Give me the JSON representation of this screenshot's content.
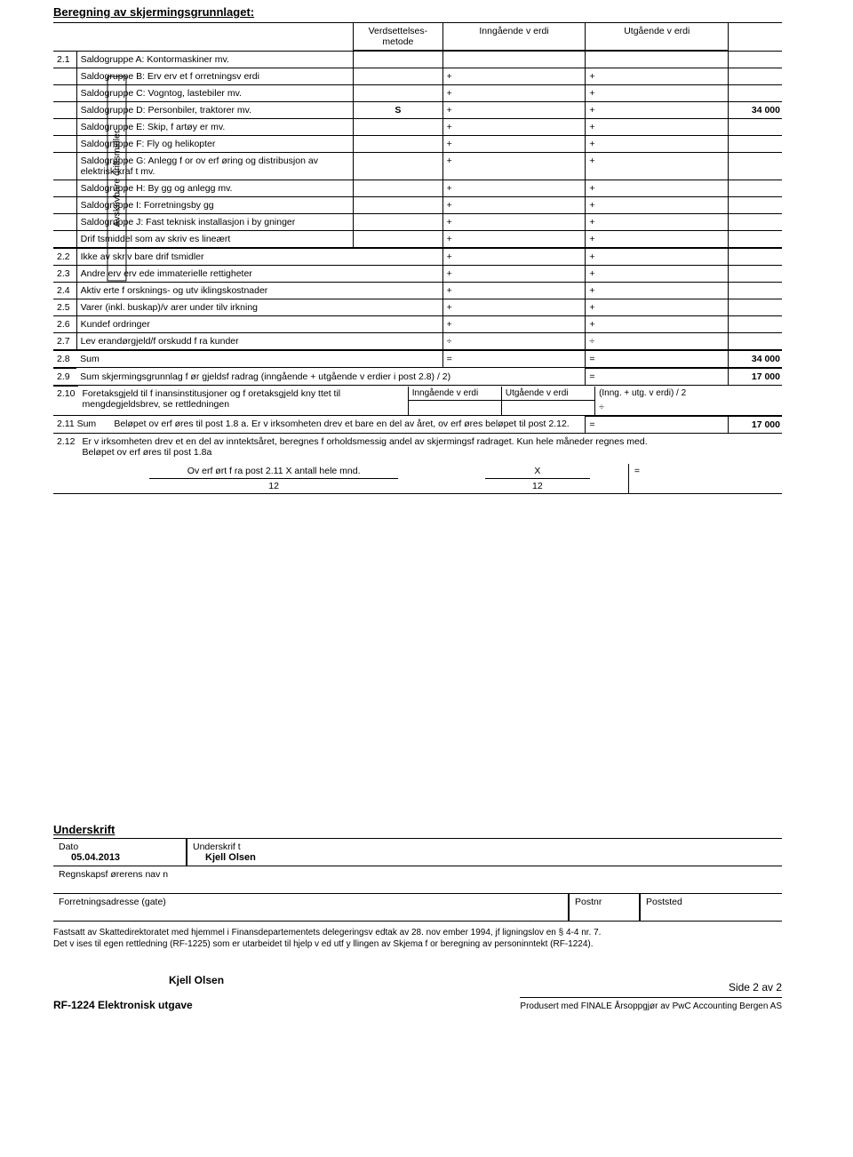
{
  "title": "Beregning av skjermingsgrunnlaget:",
  "hdr": {
    "metode": "Verdsettelses-\nmetode",
    "inn": "Inngående v erdi",
    "utg": "Utgående v erdi"
  },
  "vert": "Avskrivbare driftsmidler",
  "rows": [
    {
      "num": "2.1",
      "desc": "Saldogruppe A: Kontormaskiner mv.",
      "m": "",
      "i": "",
      "u": "",
      "ext": ""
    },
    {
      "num": "",
      "desc": "Saldogruppe B: Erv erv et f orretningsv erdi",
      "m": "",
      "i": "+",
      "u": "+",
      "ext": ""
    },
    {
      "num": "",
      "desc": "Saldogruppe C: Vogntog, lastebiler mv.",
      "m": "",
      "i": "+",
      "u": "+",
      "ext": ""
    },
    {
      "num": "",
      "desc": "Saldogruppe D: Personbiler, traktorer mv.",
      "m": "S",
      "i": "+",
      "u": "+",
      "ext": "34 000"
    },
    {
      "num": "",
      "desc": "Saldogruppe E: Skip, f artøy er mv.",
      "m": "",
      "i": "+",
      "u": "+",
      "ext": ""
    },
    {
      "num": "",
      "desc": "Saldogruppe F:  Fly og helikopter",
      "m": "",
      "i": "+",
      "u": "+",
      "ext": ""
    },
    {
      "num": "",
      "desc": "Saldogruppe G: Anlegg f or ov erf øring og distribusjon av elektrisk kraf t mv.",
      "m": "",
      "i": "+",
      "u": "+",
      "ext": ""
    },
    {
      "num": "",
      "desc": "Saldogruppe H: By gg og anlegg mv.",
      "m": "",
      "i": "+",
      "u": "+",
      "ext": ""
    },
    {
      "num": "",
      "desc": "Saldogruppe I: Forretningsby gg",
      "m": "",
      "i": "+",
      "u": "+",
      "ext": ""
    },
    {
      "num": "",
      "desc": "Saldogruppe J: Fast teknisk installasjon i by gninger",
      "m": "",
      "i": "+",
      "u": "+",
      "ext": ""
    },
    {
      "num": "",
      "desc": "Drif tsmiddel som av skriv es lineært",
      "m": "",
      "i": "+",
      "u": "+",
      "ext": ""
    }
  ],
  "rows2": [
    {
      "num": "2.2",
      "desc": "Ikke av skriv bare drif tsmidler",
      "i": "+",
      "u": "+",
      "ext": ""
    },
    {
      "num": "2.3",
      "desc": "Andre erv erv ede immaterielle rettigheter",
      "i": "+",
      "u": "+",
      "ext": ""
    },
    {
      "num": "2.4",
      "desc": "Aktiv erte f orsknings- og utv iklingskostnader",
      "i": "+",
      "u": "+",
      "ext": ""
    },
    {
      "num": "2.5",
      "desc": "Varer (inkl. buskap)/v arer under tilv irkning",
      "i": "+",
      "u": "+",
      "ext": ""
    },
    {
      "num": "2.6",
      "desc": "Kundef ordringer",
      "i": "+",
      "u": "+",
      "ext": ""
    },
    {
      "num": "2.7",
      "desc": "Lev erandørgjeld/f orskudd f ra kunder",
      "i": "÷",
      "u": "÷",
      "ext": ""
    }
  ],
  "sumrow": {
    "num": "2.8",
    "desc": "Sum",
    "i": "=",
    "u": "=",
    "ext": "34 000"
  },
  "r29": {
    "num": "2.9",
    "desc": "Sum skjermingsgrunnlag f ør gjeldsf radrag (inngående + utgående v erdier i post 2.8) / 2)",
    "u": "=",
    "ext": "17 000"
  },
  "r210": {
    "num": "2.10",
    "desc": "Foretaksgjeld til f inansinstitusjoner og f oretaksgjeld kny ttet til mengdegjeldsbrev, se rettledningen",
    "sub_inn": "Inngående v erdi",
    "sub_utg": "Utgående v erdi",
    "sub_calc": "(Inng. + utg. v erdi) / 2",
    "u": "÷"
  },
  "r211": {
    "num": "2.11 Sum",
    "desc": "Beløpet ov erf øres til post 1.8 a. Er v irksomheten drev et bare en del av året, ov erf øres beløpet til post 2.12.",
    "u": "=",
    "ext": "17 000"
  },
  "r212": {
    "num": "2.12",
    "desc": "Er v irksomheten drev et en del av inntektsåret, beregnes f orholdsmessig andel av skjermingsf radraget. Kun hele måneder regnes med.\nBeløpet ov erf øres til post 1.8a"
  },
  "mnd1": "Ov erf ørt f ra post 2.11 X antall hele mnd.",
  "mndX": "X",
  "mnd12a": "12",
  "mnd12b": "12",
  "mndeq": "=",
  "sig": {
    "title": "Underskrift",
    "dato_lbl": "Dato",
    "dato": "05.04.2013",
    "sign_lbl": "Underskrif t",
    "sign": "Kjell Olsen",
    "rf": "Regnskapsf ørerens nav n",
    "adr": "Forretningsadresse (gate)",
    "postnr": "Postnr",
    "poststed": "Poststed"
  },
  "footer_note": "Fastsatt av Skattedirektoratet med hjemmel i Finansdepartementets delegeringsv edtak av 28. nov ember 1994, jf ligningslov en § 4-4 nr. 7.\nDet v ises til egen rettledning (RF-1225) som er utarbeidet til hjelp v ed utf y llingen av Skjema f or beregning av personinntekt (RF-1224).",
  "signame": "Kjell Olsen",
  "formname": "RF-1224 Elektronisk utgave",
  "pageno": "Side 2 av 2",
  "produsert": "Produsert med FINALE Årsoppgjør av PwC Accounting Bergen AS"
}
